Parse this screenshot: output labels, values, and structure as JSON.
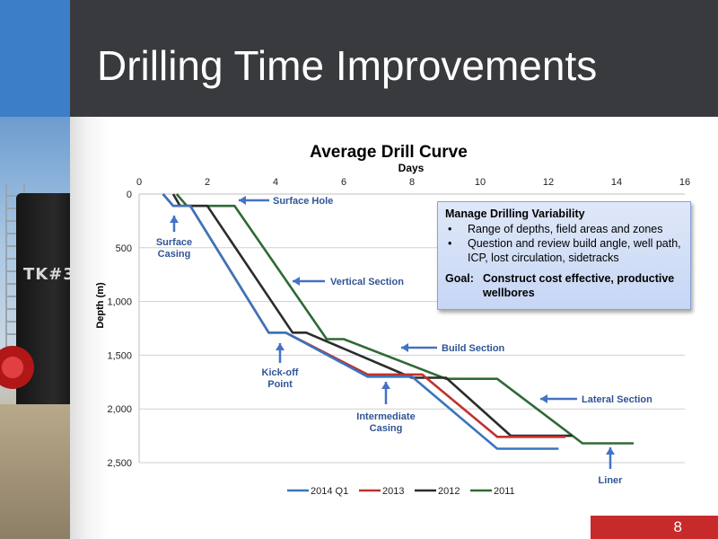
{
  "slide": {
    "title": "Drilling Time Improvements",
    "page_number": "8",
    "photo_tank_label": "TK#3",
    "colors": {
      "header": "#383a3d",
      "accent_blue": "#3d7ec9",
      "page_number_bg": "#c72a2a"
    }
  },
  "callout": {
    "title": "Manage Drilling Variability",
    "bullets": [
      "Range of depths, field areas and zones",
      "Question and review build angle, well path, ICP, lost circulation, sidetracks"
    ],
    "goal_label": "Goal:",
    "goal_text": "Construct cost effective, productive wellbores"
  },
  "chart_data": {
    "type": "line",
    "title": "Average Drill Curve",
    "xlabel": "Days",
    "ylabel": "Depth (m)",
    "xlim": [
      0,
      16
    ],
    "ylim": [
      2500,
      0
    ],
    "x_axis_position": "top",
    "y_inverted": true,
    "xticks": [
      "0",
      "2",
      "4",
      "6",
      "8",
      "10",
      "12",
      "14",
      "16"
    ],
    "yticks": [
      "0",
      "500",
      "1,000",
      "1,500",
      "2,000",
      "2,500"
    ],
    "grid": "horizontal",
    "legend_position": "bottom",
    "series": [
      {
        "name": "2014 Q1",
        "color": "#3b74bd",
        "points": [
          [
            0.7,
            0
          ],
          [
            1.0,
            110
          ],
          [
            1.5,
            110
          ],
          [
            3.8,
            1290
          ],
          [
            4.3,
            1290
          ],
          [
            6.7,
            1700
          ],
          [
            8.0,
            1700
          ],
          [
            10.5,
            2370
          ],
          [
            12.3,
            2370
          ]
        ]
      },
      {
        "name": "2013",
        "color": "#c0312d",
        "points": [
          [
            0.7,
            0
          ],
          [
            1.0,
            110
          ],
          [
            1.5,
            110
          ],
          [
            3.8,
            1290
          ],
          [
            4.3,
            1290
          ],
          [
            6.7,
            1680
          ],
          [
            8.3,
            1680
          ],
          [
            10.5,
            2260
          ],
          [
            12.5,
            2260
          ]
        ]
      },
      {
        "name": "2012",
        "color": "#2c2c2c",
        "points": [
          [
            1.0,
            0
          ],
          [
            1.2,
            110
          ],
          [
            2.0,
            110
          ],
          [
            4.5,
            1290
          ],
          [
            4.9,
            1290
          ],
          [
            8.0,
            1710
          ],
          [
            9.0,
            1710
          ],
          [
            10.9,
            2250
          ],
          [
            12.7,
            2250
          ]
        ]
      },
      {
        "name": "2011",
        "color": "#2e6b34",
        "points": [
          [
            1.1,
            0
          ],
          [
            1.4,
            110
          ],
          [
            2.8,
            110
          ],
          [
            5.5,
            1350
          ],
          [
            6.0,
            1350
          ],
          [
            9.0,
            1720
          ],
          [
            10.5,
            1720
          ],
          [
            13.0,
            2320
          ],
          [
            14.5,
            2320
          ]
        ]
      }
    ],
    "annotations": [
      {
        "lines": [
          "Surface Hole"
        ],
        "anchor": "left",
        "arrow": "left"
      },
      {
        "lines": [
          "Surface",
          "Casing"
        ],
        "anchor": "center",
        "arrow": "up"
      },
      {
        "lines": [
          "Vertical Section"
        ],
        "anchor": "left",
        "arrow": "left"
      },
      {
        "lines": [
          "Build Section"
        ],
        "anchor": "left",
        "arrow": "left"
      },
      {
        "lines": [
          "Kick-off",
          "Point"
        ],
        "anchor": "center",
        "arrow": "up"
      },
      {
        "lines": [
          "Intermediate",
          "Casing"
        ],
        "anchor": "center",
        "arrow": "up"
      },
      {
        "lines": [
          "Lateral Section"
        ],
        "anchor": "left",
        "arrow": "left"
      },
      {
        "lines": [
          "Liner"
        ],
        "anchor": "center",
        "arrow": "up"
      }
    ]
  }
}
